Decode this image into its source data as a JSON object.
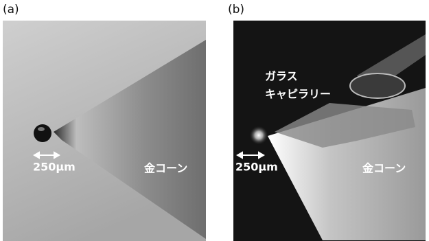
{
  "panels": [
    {
      "label": "(a)",
      "scale_bar": "250μm",
      "cone_label": "金コーン"
    },
    {
      "label": "(b)",
      "scale_bar": "250μm",
      "cone_label": "金コーン",
      "capillary_label": [
        "ガラス",
        "キャピラリー"
      ]
    }
  ]
}
